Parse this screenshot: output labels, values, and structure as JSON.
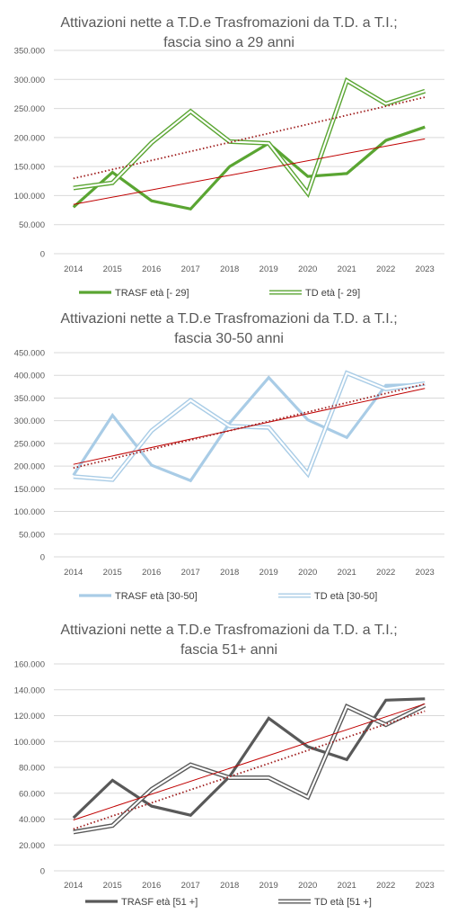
{
  "chart_data": [
    {
      "type": "line",
      "title_lines": [
        "Attivazioni nette a T.D.e Trasfromazioni da T.D. a T.I.;",
        "fascia sino a 29 anni"
      ],
      "categories": [
        "2014",
        "2015",
        "2016",
        "2017",
        "2018",
        "2019",
        "2020",
        "2021",
        "2022",
        "2023"
      ],
      "y_ticks": [
        "0",
        "50.000",
        "100.000",
        "150.000",
        "200.000",
        "250.000",
        "300.000",
        "350.000"
      ],
      "ylim": [
        0,
        350000
      ],
      "grid": true,
      "legend_position": "bottom",
      "trend_lines": true,
      "series": [
        {
          "name": "TRASF età [- 29]",
          "style": "solid",
          "color": "#5aa532",
          "values": [
            80000,
            140000,
            91000,
            77000,
            150000,
            190000,
            133000,
            138000,
            195000,
            218000
          ]
        },
        {
          "name": "TD età [- 29]",
          "style": "double",
          "color": "#5aa532",
          "values": [
            113000,
            122000,
            191000,
            245000,
            193000,
            190000,
            104000,
            298000,
            258000,
            280000
          ]
        }
      ]
    },
    {
      "type": "line",
      "title_lines": [
        "Attivazioni nette a T.D.e Trasfromazioni da T.D. a T.I.;",
        "fascia 30-50 anni"
      ],
      "categories": [
        "2014",
        "2015",
        "2016",
        "2017",
        "2018",
        "2019",
        "2020",
        "2021",
        "2022",
        "2023"
      ],
      "y_ticks": [
        "0",
        "50.000",
        "100.000",
        "150.000",
        "200.000",
        "250.000",
        "300.000",
        "350.000",
        "400.000",
        "450.000"
      ],
      "ylim": [
        0,
        450000
      ],
      "grid": true,
      "legend_position": "bottom",
      "trend_lines": true,
      "series": [
        {
          "name": "TRASF età [30-50]",
          "style": "solid",
          "color": "#a9cce6",
          "values": [
            180000,
            312000,
            202000,
            168000,
            295000,
            395000,
            302000,
            263000,
            378000,
            380000
          ]
        },
        {
          "name": "TD età [30-50]",
          "style": "double",
          "color": "#a9cce6",
          "values": [
            177000,
            170000,
            278000,
            345000,
            288000,
            285000,
            183000,
            405000,
            370000,
            382000
          ]
        }
      ]
    },
    {
      "type": "line",
      "title_lines": [
        "Attivazioni nette a T.D.e Trasfromazioni da T.D. a T.I.;",
        "fascia 51+ anni"
      ],
      "categories": [
        "2014",
        "2015",
        "2016",
        "2017",
        "2018",
        "2019",
        "2020",
        "2021",
        "2022",
        "2023"
      ],
      "y_ticks": [
        "0",
        "20.000",
        "40.000",
        "60.000",
        "80.000",
        "100.000",
        "120.000",
        "140.000",
        "160.000"
      ],
      "ylim": [
        0,
        160000
      ],
      "grid": true,
      "legend_position": "bottom",
      "trend_lines": true,
      "series": [
        {
          "name": "TRASF età [51 +]",
          "style": "solid",
          "color": "#595959",
          "values": [
            41000,
            70000,
            50000,
            43000,
            73000,
            118000,
            96000,
            86000,
            132000,
            133000
          ]
        },
        {
          "name": "TD età [51 +]",
          "style": "double",
          "color": "#595959",
          "values": [
            30000,
            35000,
            63000,
            82000,
            72000,
            72000,
            57000,
            127000,
            113000,
            128000
          ]
        }
      ]
    }
  ],
  "colors": {
    "grid": "#d9d9d9",
    "trend_solid": "#c00000",
    "trend_dotted": "#9e1b1b"
  }
}
